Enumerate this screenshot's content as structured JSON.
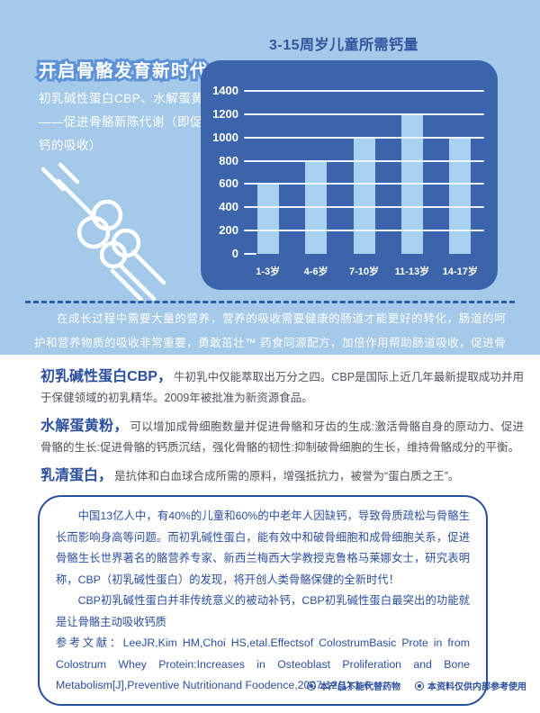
{
  "hero": {
    "headline": "开启骨骼发育新时代",
    "subtitle_lines": [
      "初乳碱性蛋白CBP、水解蛋黄粉",
      "——促进骨骼新陈代谢（即促进",
      "钙的吸收）"
    ],
    "intro": "在成长过程中需要大量的营养，营养的吸收需要健康的肠道才能更好的转化，肠道的呵护和营养物质的吸收非常重要，勇敢茁壮™ 药食同源配方，加倍作用帮助肠道吸收，促进骨骼生长看得见，身体发育更全面。"
  },
  "chart_data": {
    "type": "bar",
    "title": "3-15周岁儿童所需钙量",
    "categories": [
      "1-3岁",
      "4-6岁",
      "7-10岁",
      "11-13岁",
      "14-17岁"
    ],
    "values": [
      600,
      800,
      1000,
      1200,
      1000
    ],
    "xlabel": "",
    "ylabel": "",
    "ylim": [
      0,
      1400
    ],
    "yticks": [
      1400,
      1200,
      1000,
      800,
      600,
      400,
      200,
      0
    ],
    "grid": true,
    "legend": "none",
    "panel_color": "#3b64ac",
    "bar_color": "#a9d2f0",
    "gridline_color": "#eef4fb",
    "label_color": "#ffffff"
  },
  "sections": [
    {
      "lead": "初乳碱性蛋白CBP，",
      "body": "牛初乳中仅能萃取出万分之四。CBP是国际上近几年最新提取成功并用于保健领域的初乳精华。2009年被批准为新资源食品。"
    },
    {
      "lead": "水解蛋黄粉，",
      "body": "可以增加成骨细胞数量并促进骨骼和牙齿的生成:激活骨骼自身的原动力、促进骨骼的生长:促进骨骼的钙质沉结，强化骨骼的韧性:抑制破骨细胞的生长，维持骨骼成分的平衡。"
    },
    {
      "lead": "乳清蛋白，",
      "body": "是抗体和白血球合成所需的原料，增强抵抗力，被誉为“蛋白质之王”。"
    }
  ],
  "info_box": {
    "paragraphs": [
      "中国13亿人中，有40%的儿童和60%的中老年人因缺钙，导致骨质疏松与骨骼生长而影响身高等问题。而初乳碱性蛋白，能有效中和破骨细胞和成骨细胞关系，促进骨骼生长世界著名的骼营养专家、新西兰梅西大学教授克鲁格马莱娜女士，研究表明称，CBP（初乳碱性蛋白）的发现，将开创人类骨骼保健的全新时代！",
      "CBP初乳碱性蛋白并非传统意义的被动补钙，CBP初乳碱性蛋白最突出的功能就是让骨骼主动吸收钙质"
    ],
    "reference": "参考文献：LeeJR,Kim HM,Choi HS,etal.Effectsof ColostrumBasic Prote in from Colostrum Whey Protein:Increases in Osteoblast Proliferation and Bone Metabolism[J],Preventive Nutritionand Foodence,2007,12(1):1-6"
  },
  "footer": {
    "notes": [
      "本产品不能代替药物",
      "本资料仅供内部参考使用"
    ]
  },
  "colors": {
    "hero_background": "#a5c9e9",
    "dark_blue_text": "#2b4fa0",
    "dashed_divider": "#2d5ca8",
    "body_text": "#50525a"
  },
  "icons": {
    "bullet": "circle-with-dot",
    "illustration": "bone-joint-line-art"
  }
}
